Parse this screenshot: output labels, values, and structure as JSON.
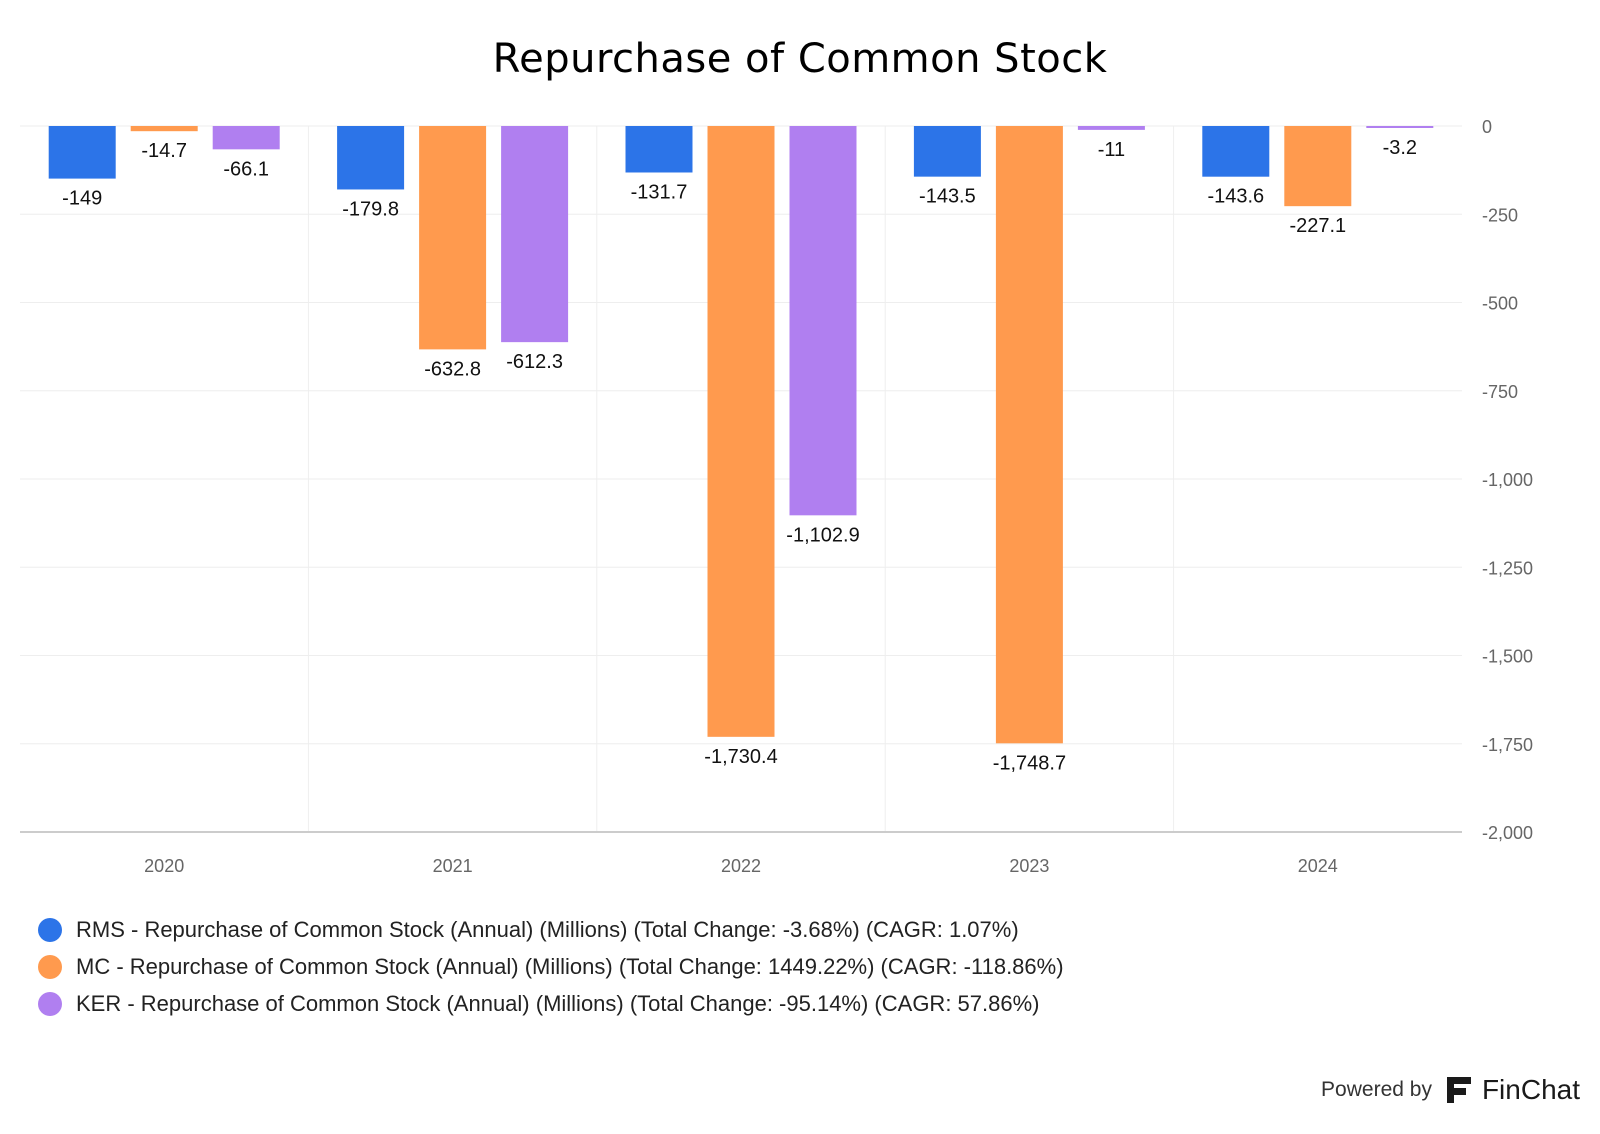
{
  "chart_data": {
    "type": "bar",
    "title": "Repurchase of Common Stock",
    "categories": [
      "2020",
      "2021",
      "2022",
      "2023",
      "2024"
    ],
    "series": [
      {
        "name": "RMS - Repurchase of Common Stock (Annual) (Millions) (Total Change: -3.68%) (CAGR: 1.07%)",
        "color": "#2C74E8",
        "values": [
          -149,
          -179.8,
          -131.7,
          -143.5,
          -143.6
        ],
        "labels": [
          "-149",
          "-179.8",
          "-131.7",
          "-143.5",
          "-143.6"
        ]
      },
      {
        "name": "MC - Repurchase of Common Stock (Annual) (Millions) (Total Change: 1449.22%) (CAGR: -118.86%)",
        "color": "#FF9A4E",
        "values": [
          -14.7,
          -632.8,
          -1730.4,
          -1748.7,
          -227.1
        ],
        "labels": [
          "-14.7",
          "-632.8",
          "-1,730.4",
          "-1,748.7",
          "-227.1"
        ]
      },
      {
        "name": "KER - Repurchase of Common Stock (Annual) (Millions) (Total Change: -95.14%) (CAGR: 57.86%)",
        "color": "#B07FF0",
        "values": [
          -66.1,
          -612.3,
          -1102.9,
          -11,
          -3.2
        ],
        "labels": [
          "-66.1",
          "-612.3",
          "-1,102.9",
          "-11",
          "-3.2"
        ]
      }
    ],
    "ylim": [
      -2000,
      0
    ],
    "yticks": [
      0,
      -250,
      -500,
      -750,
      -1000,
      -1250,
      -1500,
      -1750,
      -2000
    ],
    "ytick_labels": [
      "0",
      "-250",
      "-500",
      "-750",
      "-1,000",
      "-1,250",
      "-1,500",
      "-1,750",
      "-2,000"
    ],
    "yaxis_side": "right",
    "grid": true,
    "legend_position": "bottom-left",
    "xlabel": "",
    "ylabel": ""
  },
  "branding": {
    "powered_by": "Powered by",
    "brand_name": "FinChat",
    "logo_icon": "finchat-logo-icon"
  }
}
